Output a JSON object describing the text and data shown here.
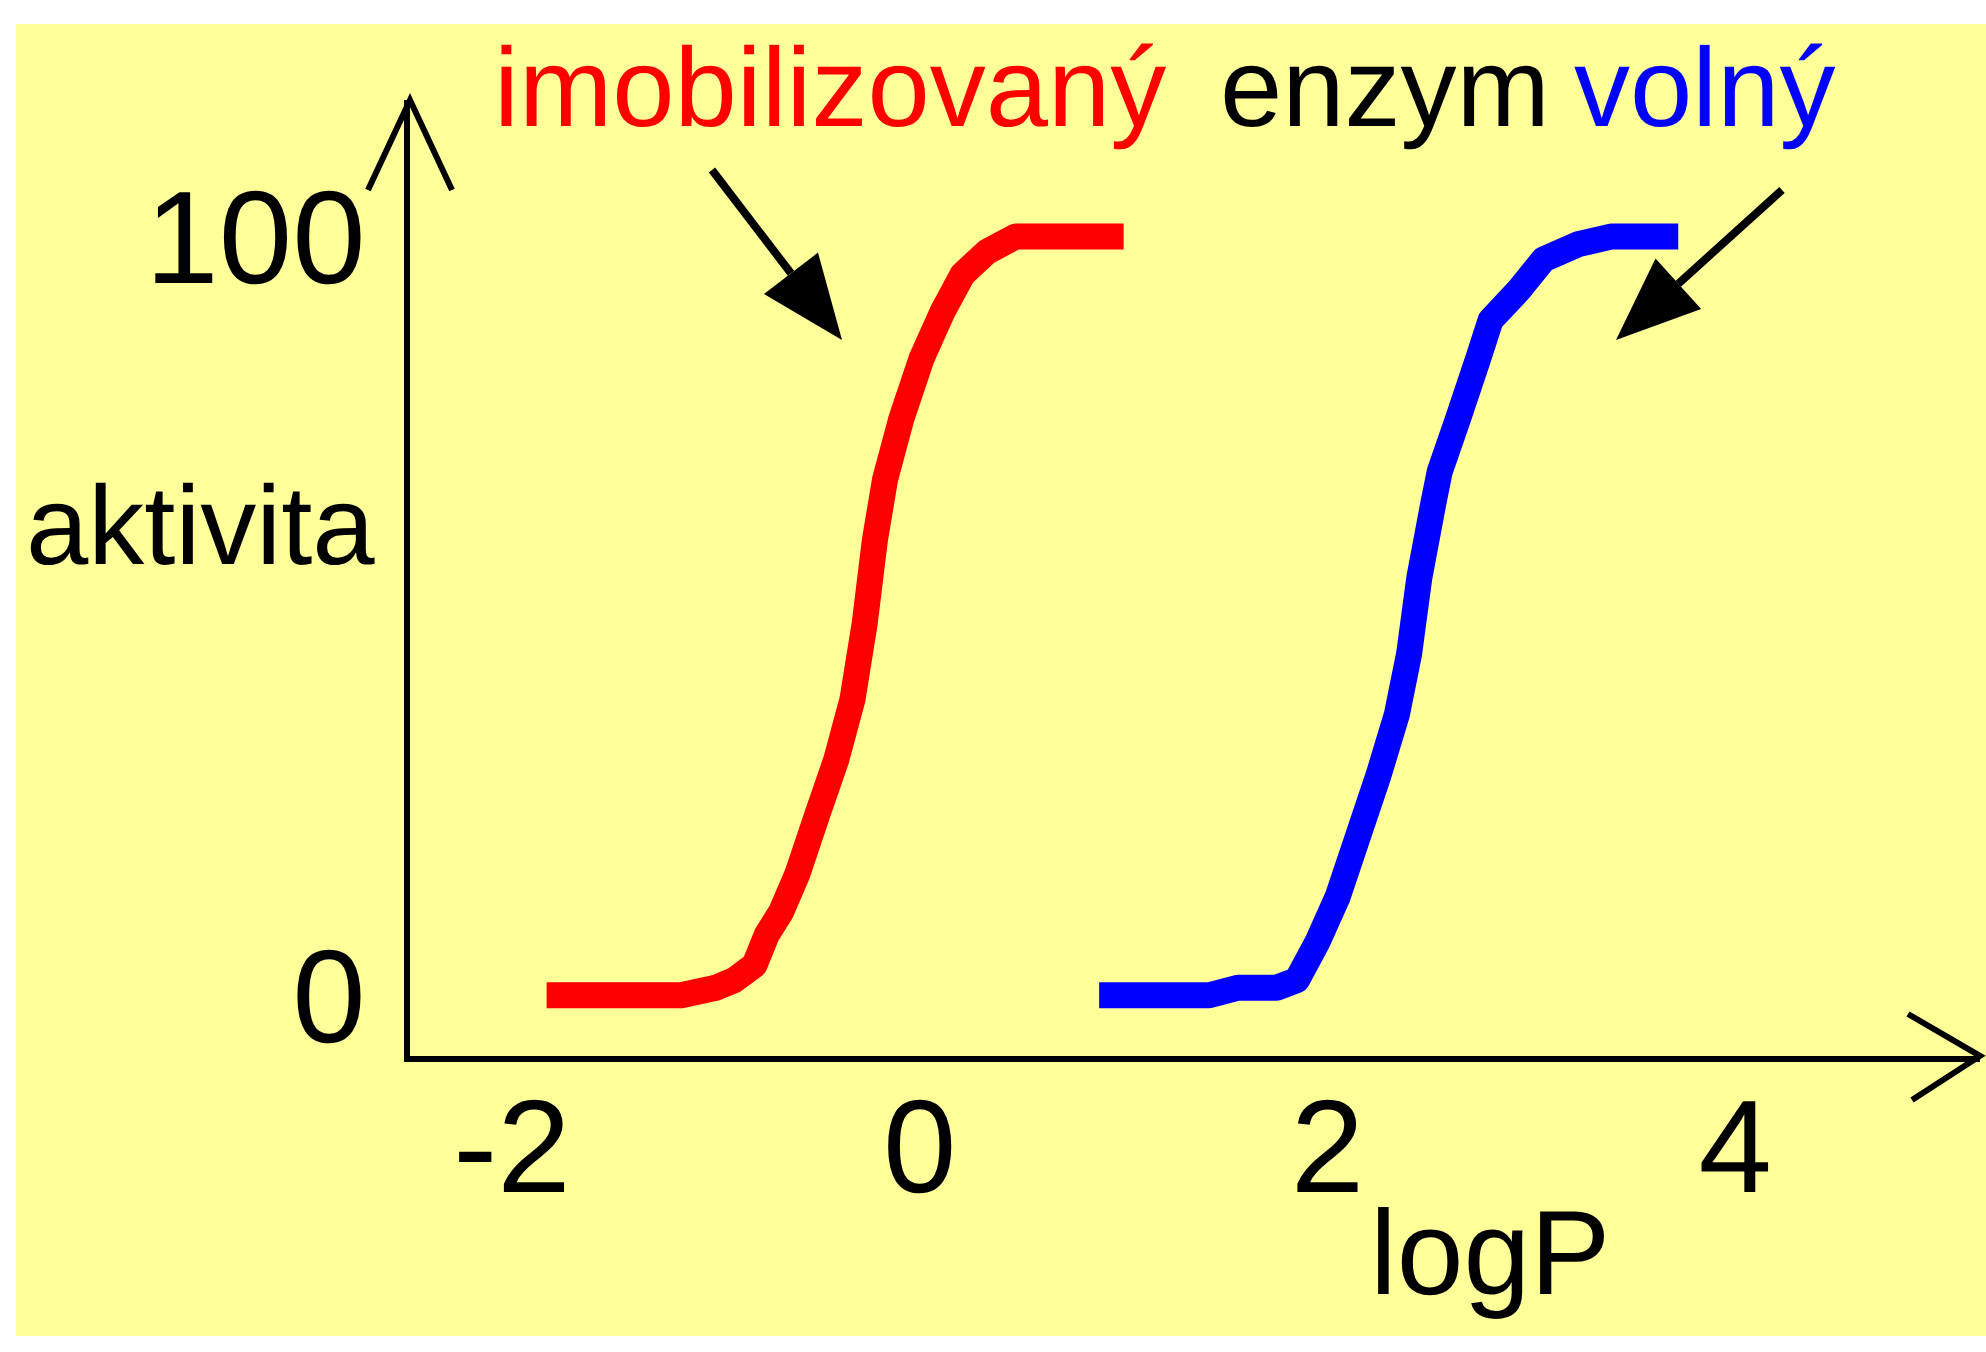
{
  "chart_data": {
    "type": "line",
    "xlabel": "logP",
    "ylabel": "aktivita",
    "annotations": [
      "enzym"
    ],
    "series": [
      {
        "name": "imobilizovaný",
        "color": "#ff0000",
        "x": [
          -1.83,
          -1.29,
          -1.17,
          -1.0,
          -0.91,
          -0.81,
          -0.75,
          -0.68,
          -0.6,
          -0.5,
          -0.41,
          -0.33,
          -0.27,
          -0.22,
          -0.17,
          -0.09,
          0.01,
          0.11,
          0.21,
          0.33,
          0.47,
          0.67,
          0.8,
          1.0
        ],
        "values": [
          0,
          0,
          0,
          1,
          2,
          4,
          8,
          11,
          16,
          24,
          31,
          39,
          49,
          60,
          68,
          76,
          84,
          90,
          95,
          98,
          100,
          100,
          100,
          100
        ]
      },
      {
        "name": "volný",
        "color": "#0000ff",
        "x": [
          0.88,
          1.42,
          1.56,
          1.75,
          1.85,
          1.95,
          2.05,
          2.15,
          2.25,
          2.34,
          2.4,
          2.45,
          2.52,
          2.55,
          2.64,
          2.74,
          2.8,
          2.94,
          3.06,
          3.23,
          3.39,
          3.56,
          3.72
        ],
        "values": [
          0,
          0,
          1,
          1,
          2,
          7,
          13,
          21,
          29,
          37,
          45,
          55,
          65,
          69,
          76,
          84,
          89,
          93,
          97,
          99,
          100,
          100,
          100
        ]
      }
    ],
    "xlim": [
      -2.5,
      5.2
    ],
    "xticks": [
      -2,
      0,
      2,
      4
    ],
    "ylim": [
      -8,
      118
    ],
    "yticks": [
      0,
      100
    ],
    "line_style": "solid",
    "grid": false,
    "legend": false
  }
}
